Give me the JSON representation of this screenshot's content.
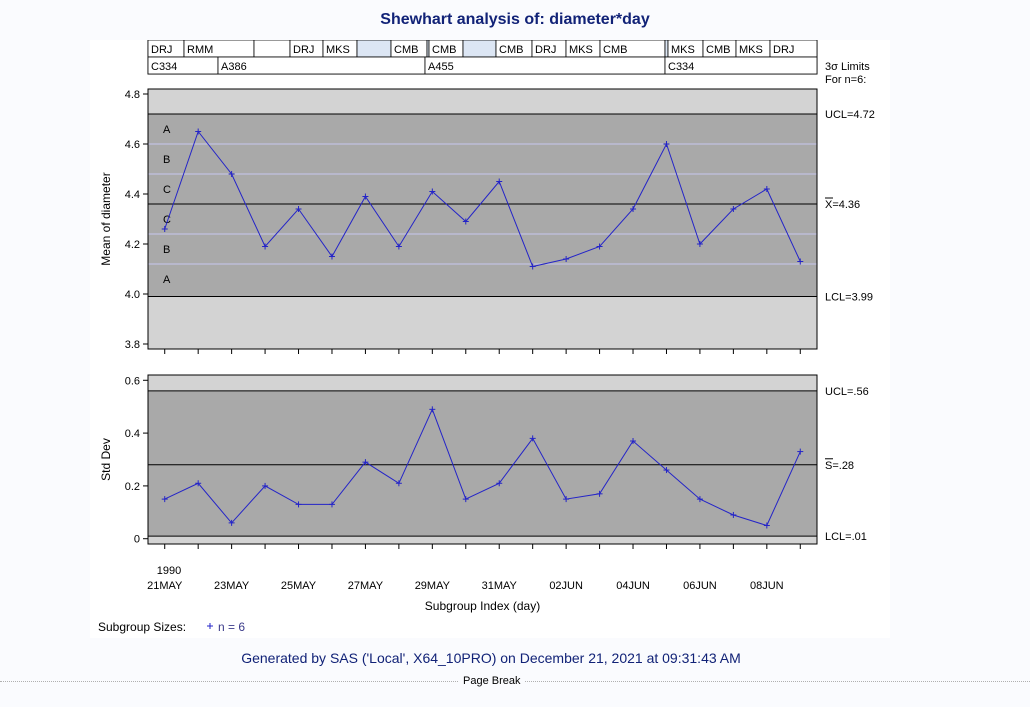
{
  "title": "Shewhart analysis of: diameter*day",
  "footer": "Generated by SAS ('Local', X64_10PRO) on December 21, 2021 at 09:31:43 AM",
  "page_break": "Page Break",
  "colors": {
    "outer_band": "#d3d3d3",
    "inner_band": "#a9a9a9",
    "line": "#2424c8",
    "zone": "#c8c8f0"
  },
  "phase_rows": {
    "operators": [
      "DRJ",
      "RMM",
      "",
      "DRJ",
      "MKS",
      "",
      "CMB",
      "",
      "CMB",
      "",
      "CMB",
      "DRJ",
      "MKS",
      "CMB",
      "",
      "MKS",
      "CMB",
      "MKS",
      "DRJ"
    ],
    "batches": [
      "C334",
      "A386",
      "A455",
      "C334"
    ]
  },
  "limits_header": {
    "line1": "3σ Limits",
    "line2": "For n=6:"
  },
  "legend": {
    "label": "Subgroup Sizes:",
    "item": "n = 6"
  },
  "chart_data": [
    {
      "type": "line",
      "name": "Xbar chart",
      "ylabel": "Mean of diameter",
      "ylim": [
        3.78,
        4.82
      ],
      "yticks": [
        "3.8",
        "4.0",
        "4.2",
        "4.4",
        "4.6",
        "4.8"
      ],
      "ucl": 4.72,
      "center": 4.36,
      "lcl": 3.99,
      "ucl_label": "UCL=4.72",
      "center_label": "X=4.36",
      "lcl_label": "LCL=3.99",
      "zone_labels": [
        "A",
        "B",
        "C",
        "C",
        "B",
        "A"
      ],
      "values": [
        4.26,
        4.65,
        4.48,
        4.19,
        4.34,
        4.15,
        4.39,
        4.19,
        4.41,
        4.29,
        4.45,
        4.11,
        4.14,
        4.19,
        4.34,
        4.6,
        4.2,
        4.34,
        4.42,
        4.13
      ]
    },
    {
      "type": "line",
      "name": "S chart",
      "ylabel": "Std Dev",
      "ylim": [
        -0.02,
        0.62
      ],
      "yticks": [
        "0",
        "0.2",
        "0.4",
        "0.6"
      ],
      "ucl": 0.56,
      "center": 0.28,
      "lcl": 0.01,
      "ucl_label": "UCL=.56",
      "center_label": "S=.28",
      "lcl_label": "LCL=.01",
      "values": [
        0.15,
        0.21,
        0.06,
        0.2,
        0.13,
        0.13,
        0.29,
        0.21,
        0.49,
        0.15,
        0.21,
        0.38,
        0.15,
        0.17,
        0.37,
        0.26,
        0.15,
        0.09,
        0.05,
        0.33
      ]
    }
  ],
  "x_axis": {
    "label": "Subgroup Index (day)",
    "year": "1990",
    "tick_labels": [
      "21MAY",
      "23MAY",
      "25MAY",
      "27MAY",
      "29MAY",
      "31MAY",
      "02JUN",
      "04JUN",
      "06JUN",
      "08JUN"
    ]
  }
}
